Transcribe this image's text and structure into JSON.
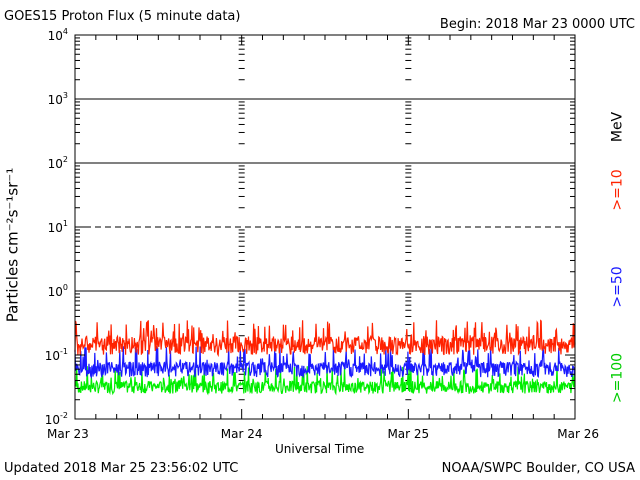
{
  "header": {
    "title": "GOES15 Proton Flux (5 minute data)",
    "begin": "Begin: 2018 Mar 23 0000 UTC"
  },
  "footer": {
    "updated": "Updated 2018 Mar 25 23:56:02 UTC",
    "source": "NOAA/SWPC Boulder, CO USA"
  },
  "colors": {
    "ge10": "#ff2200",
    "ge50": "#1a1aff",
    "ge100": "#00ee00",
    "axis": "#000000"
  },
  "chart_data": {
    "type": "line",
    "title": "GOES15 Proton Flux (5 minute data)",
    "xlabel": "Universal Time",
    "ylabel": "Particles cm⁻²s⁻¹sr⁻¹",
    "yscale": "log",
    "ylim": [
      0.01,
      10000
    ],
    "y_ticks": [
      {
        "value": 0.01,
        "base": "10",
        "exp": "-2"
      },
      {
        "value": 0.1,
        "base": "10",
        "exp": "-1"
      },
      {
        "value": 1,
        "base": "10",
        "exp": "0"
      },
      {
        "value": 10,
        "base": "10",
        "exp": "1"
      },
      {
        "value": 100,
        "base": "10",
        "exp": "2"
      },
      {
        "value": 1000,
        "base": "10",
        "exp": "3"
      },
      {
        "value": 10000,
        "base": "10",
        "exp": "4"
      }
    ],
    "x_ticks": [
      "Mar 23",
      "Mar 24",
      "Mar 25",
      "Mar 26"
    ],
    "grid": true,
    "threshold_lines": [
      {
        "value": 10,
        "style": "dashed"
      },
      {
        "value": 1000,
        "style": "solid"
      },
      {
        "value": 100,
        "style": "solid"
      },
      {
        "value": 1,
        "style": "solid"
      }
    ],
    "legend": {
      "unit": "MeV",
      "entries": [
        ">=10",
        ">=50",
        ">=100"
      ],
      "placement": "right"
    },
    "series": [
      {
        "name": ">=10",
        "color": "#ff2200",
        "typical": 0.15,
        "low": 0.1,
        "high": 0.35
      },
      {
        "name": ">=50",
        "color": "#1a1aff",
        "typical": 0.06,
        "low": 0.045,
        "high": 0.14
      },
      {
        "name": ">=100",
        "color": "#00ee00",
        "typical": 0.03,
        "low": 0.025,
        "high": 0.07
      }
    ]
  }
}
